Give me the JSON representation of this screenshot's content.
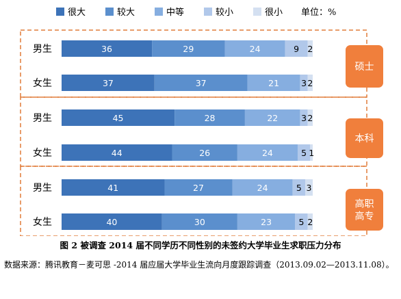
{
  "chart_data": {
    "type": "bar",
    "orientation": "horizontal",
    "stacked": true,
    "legend": {
      "placement": "top",
      "items": [
        "很大",
        "较大",
        "中等",
        "较小",
        "很小"
      ],
      "unit_note": "单位：%"
    },
    "series_colors": [
      "#3d73b8",
      "#5b8fcd",
      "#86aee0",
      "#b1c8ea",
      "#d4e0f1"
    ],
    "group_box_color": "#e07b39",
    "group_label_bg": "#f07f3c",
    "groups": [
      {
        "label": "硕士",
        "rows": [
          {
            "label": "男生",
            "values": [
              36,
              29,
              24,
              9,
              2
            ]
          },
          {
            "label": "女生",
            "values": [
              37,
              37,
              21,
              3,
              2
            ]
          }
        ]
      },
      {
        "label": "本科",
        "rows": [
          {
            "label": "男生",
            "values": [
              45,
              28,
              22,
              3,
              2
            ]
          },
          {
            "label": "女生",
            "values": [
              44,
              26,
              24,
              5,
              1
            ]
          }
        ]
      },
      {
        "label": "高职高专",
        "label_lines": [
          "高职",
          "高专"
        ],
        "rows": [
          {
            "label": "男生",
            "values": [
              41,
              27,
              24,
              5,
              3
            ]
          },
          {
            "label": "女生",
            "values": [
              40,
              30,
              23,
              5,
              2
            ]
          }
        ]
      }
    ],
    "xlim": [
      0,
      100
    ],
    "grid": false
  },
  "caption": "图 2  被调查 2014 届不同学历不同性别的未签约大学毕业生求职压力分布",
  "source": "数据来源：腾讯教育－麦可思 -2014 届应届大学毕业生流向月度跟踪调查（2013.09.02—2013.11.08）。"
}
